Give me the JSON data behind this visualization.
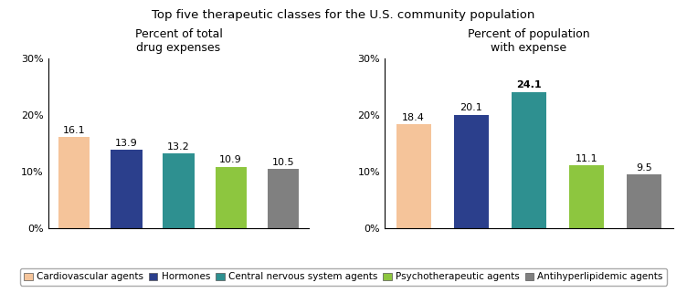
{
  "title": "Top five therapeutic classes for the U.S. community population",
  "chart1_title": "Percent of total\ndrug expenses",
  "chart2_title": "Percent of population\nwith expense",
  "categories": [
    "Cardiovascular agents",
    "Hormones",
    "Central nervous system agents",
    "Psychotherapeutic agents",
    "Antihyperlipidemic agents"
  ],
  "values1": [
    16.1,
    13.9,
    13.2,
    10.9,
    10.5
  ],
  "values2": [
    18.4,
    20.1,
    24.1,
    11.1,
    9.5
  ],
  "bar_colors": [
    "#F5C49A",
    "#2B3F8C",
    "#2E9090",
    "#8DC63F",
    "#808080"
  ],
  "ylim": [
    0,
    30
  ],
  "yticks": [
    0,
    10,
    20,
    30
  ],
  "yticklabels": [
    "0%",
    "10%",
    "20%",
    "30%"
  ],
  "bar_width": 0.6,
  "label_fontsize": 8,
  "title_fontsize": 9.5,
  "subtitle_fontsize": 9,
  "legend_fontsize": 7.5,
  "tick_fontsize": 8
}
